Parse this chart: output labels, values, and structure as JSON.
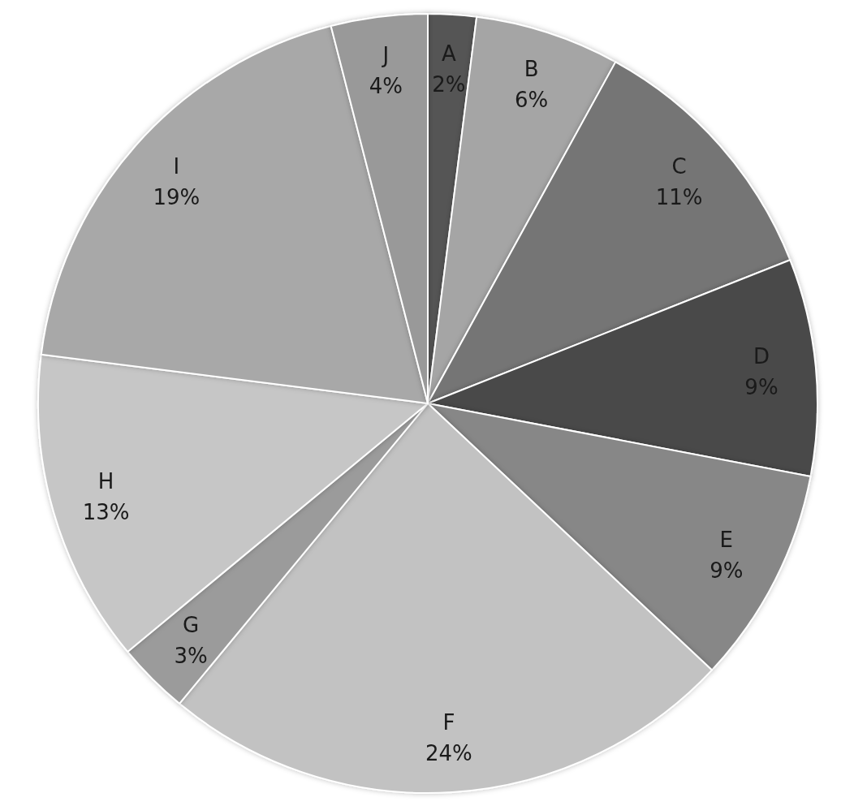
{
  "chart_data": {
    "type": "pie",
    "categories": [
      "A",
      "B",
      "C",
      "D",
      "E",
      "F",
      "G",
      "H",
      "I",
      "J"
    ],
    "values": [
      2,
      6,
      11,
      9,
      9,
      24,
      3,
      13,
      19,
      4
    ],
    "value_labels": [
      "2%",
      "6%",
      "11%",
      "9%",
      "9%",
      "24%",
      "3%",
      "13%",
      "19%",
      "4%"
    ],
    "colors": [
      "#555555",
      "#a5a5a5",
      "#747474",
      "#4a4a4a",
      "#878787",
      "#c2c2c2",
      "#9b9b9b",
      "#c6c6c6",
      "#a8a8a8",
      "#999999"
    ]
  }
}
